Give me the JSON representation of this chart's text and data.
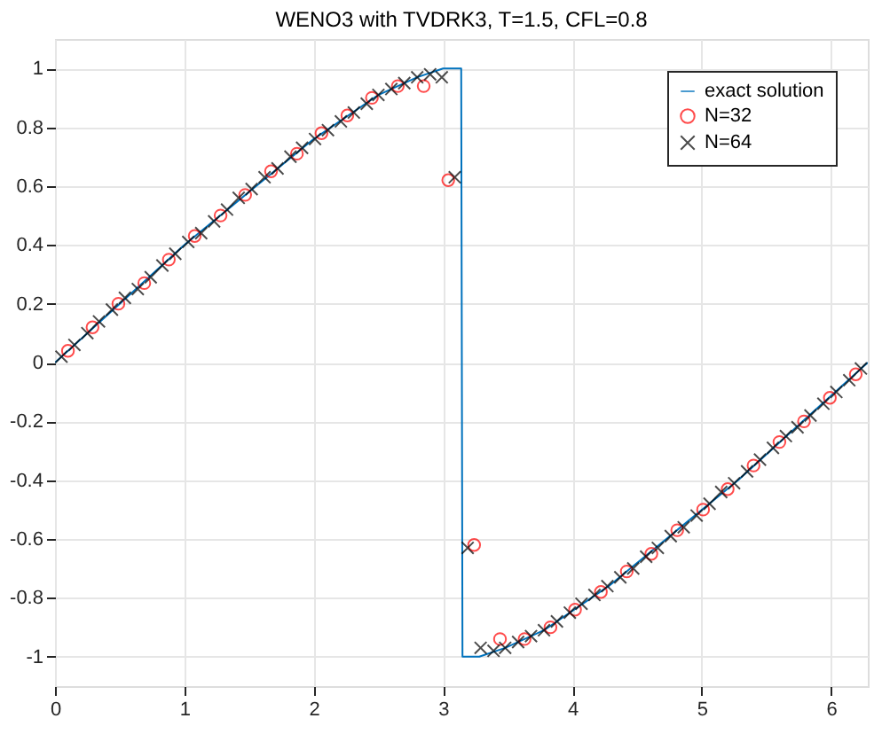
{
  "chart_data": {
    "type": "line",
    "title": "WENO3 with TVDRK3, T=1.5, CFL=0.8",
    "xlim": [
      0,
      6.2832
    ],
    "ylim": [
      -1.1,
      1.1
    ],
    "xticks": [
      0,
      1,
      2,
      3,
      4,
      5,
      6
    ],
    "yticks": [
      -1,
      -0.8,
      -0.6,
      -0.4,
      -0.2,
      0,
      0.2,
      0.4,
      0.6,
      0.8,
      1
    ],
    "grid": true,
    "legend": "top right",
    "series": [
      {
        "name": "exact solution",
        "color": "#0072bd",
        "line_style": "solid",
        "x": [
          0,
          0.5,
          1.0,
          1.5,
          2.0,
          2.5,
          2.8,
          3.0,
          3.14,
          3.15,
          3.28,
          3.48,
          3.78,
          4.28,
          4.78,
          5.28,
          5.78,
          6.2832
        ],
        "values": [
          0,
          0.2,
          0.4,
          0.58,
          0.76,
          0.91,
          0.97,
          1.0,
          1.0,
          -1.0,
          -1.0,
          -0.97,
          -0.91,
          -0.76,
          -0.58,
          -0.4,
          -0.2,
          0
        ]
      },
      {
        "name": "N=32",
        "type": "scatter",
        "marker": "circle",
        "color": "#ff0000",
        "x": [
          0.1,
          0.29,
          0.49,
          0.69,
          0.88,
          1.08,
          1.28,
          1.47,
          1.67,
          1.87,
          2.06,
          2.26,
          2.45,
          2.65,
          2.85,
          3.04,
          3.24,
          3.44,
          3.63,
          3.83,
          4.02,
          4.22,
          4.42,
          4.61,
          4.81,
          5.01,
          5.2,
          5.4,
          5.6,
          5.79,
          5.99,
          6.19
        ],
        "values": [
          0.04,
          0.12,
          0.2,
          0.27,
          0.35,
          0.43,
          0.5,
          0.57,
          0.65,
          0.71,
          0.78,
          0.84,
          0.9,
          0.94,
          0.94,
          0.62,
          -0.62,
          -0.94,
          -0.94,
          -0.9,
          -0.84,
          -0.78,
          -0.71,
          -0.65,
          -0.57,
          -0.5,
          -0.43,
          -0.35,
          -0.27,
          -0.2,
          -0.12,
          -0.04
        ]
      },
      {
        "name": "N=64",
        "type": "scatter",
        "marker": "cross",
        "color": "#000000",
        "x": [
          0.05,
          0.15,
          0.25,
          0.34,
          0.44,
          0.54,
          0.64,
          0.74,
          0.83,
          0.93,
          1.03,
          1.13,
          1.23,
          1.33,
          1.42,
          1.52,
          1.62,
          1.72,
          1.82,
          1.91,
          2.01,
          2.11,
          2.21,
          2.31,
          2.41,
          2.5,
          2.6,
          2.7,
          2.8,
          2.9,
          2.99,
          3.09,
          3.19,
          3.29,
          3.39,
          3.48,
          3.58,
          3.68,
          3.78,
          3.88,
          3.98,
          4.07,
          4.17,
          4.27,
          4.37,
          4.47,
          4.57,
          4.66,
          4.76,
          4.86,
          4.96,
          5.06,
          5.15,
          5.25,
          5.35,
          5.45,
          5.55,
          5.65,
          5.74,
          5.84,
          5.94,
          6.04,
          6.14,
          6.23
        ],
        "values": [
          0.02,
          0.06,
          0.1,
          0.14,
          0.18,
          0.22,
          0.25,
          0.29,
          0.33,
          0.37,
          0.41,
          0.44,
          0.48,
          0.52,
          0.56,
          0.59,
          0.63,
          0.66,
          0.7,
          0.73,
          0.76,
          0.79,
          0.82,
          0.85,
          0.88,
          0.91,
          0.93,
          0.95,
          0.97,
          0.98,
          0.97,
          0.63,
          -0.63,
          -0.97,
          -0.98,
          -0.97,
          -0.95,
          -0.93,
          -0.91,
          -0.88,
          -0.85,
          -0.82,
          -0.79,
          -0.76,
          -0.73,
          -0.7,
          -0.66,
          -0.63,
          -0.59,
          -0.56,
          -0.52,
          -0.48,
          -0.44,
          -0.41,
          -0.37,
          -0.33,
          -0.29,
          -0.25,
          -0.22,
          -0.18,
          -0.14,
          -0.1,
          -0.06,
          -0.02
        ]
      }
    ]
  }
}
